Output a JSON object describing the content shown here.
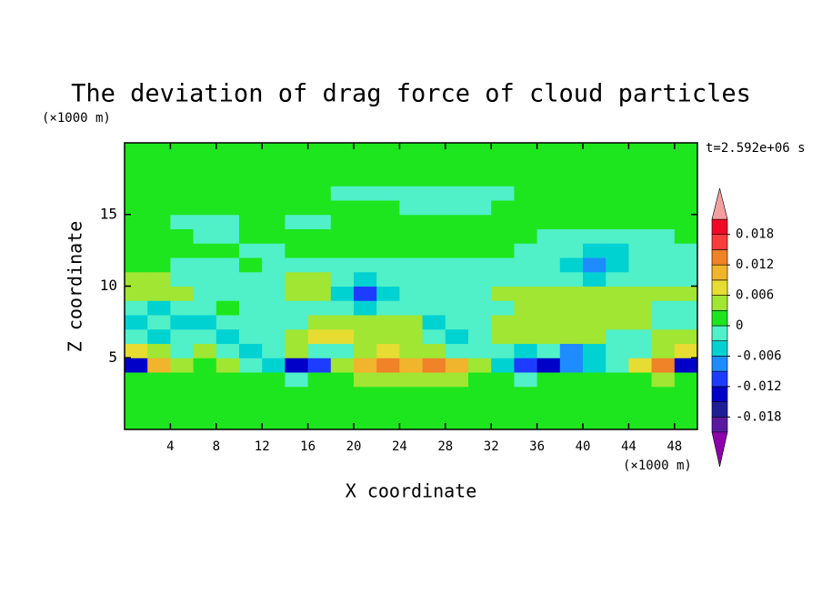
{
  "chart_data": {
    "type": "contour",
    "title": "The deviation of drag force of cloud particles",
    "x_label": "X coordinate",
    "y_label": "Z coordinate",
    "x_unit": "(×1000 m)",
    "y_unit": "(×1000 m)",
    "time_label": "t=2.592e+06 s",
    "xlim": [
      0,
      50
    ],
    "ylim": [
      0,
      20
    ],
    "xticks": [
      4,
      8,
      12,
      16,
      20,
      24,
      28,
      32,
      36,
      40,
      44,
      48
    ],
    "yticks": [
      5,
      10,
      15
    ],
    "x": [
      1,
      3,
      5,
      7,
      9,
      11,
      13,
      15,
      17,
      19,
      21,
      23,
      25,
      27,
      29,
      31,
      33,
      35,
      37,
      39,
      41,
      43,
      45,
      47,
      49
    ],
    "y": [
      0.5,
      1.5,
      2.5,
      3.5,
      4.5,
      5.5,
      6.5,
      7.5,
      8.5,
      9.5,
      10.5,
      11.5,
      12.5,
      13.5,
      14.5,
      15.5,
      16.5,
      17.5,
      18.5,
      19.5
    ],
    "levels": [
      -0.021,
      -0.018,
      -0.015,
      -0.012,
      -0.009,
      -0.006,
      -0.003,
      0,
      0.003,
      0.006,
      0.009,
      0.012,
      0.015,
      0.018,
      0.021
    ],
    "colors": [
      "#8c00aa",
      "#5a1aa0",
      "#1e1e96",
      "#0000c8",
      "#1e3cff",
      "#1e8cff",
      "#00d2d2",
      "#50f0c8",
      "#1ee61e",
      "#a0e632",
      "#e6dc32",
      "#f0b42d",
      "#f08228",
      "#fa3c3c",
      "#f00a28",
      "#f5a0a0"
    ],
    "colorbar_ticks": [
      -0.018,
      -0.012,
      -0.006,
      0,
      0.006,
      0.012,
      0.018
    ],
    "z": [
      [
        0.001,
        0.001,
        0.001,
        0.001,
        0.001,
        0.001,
        0.001,
        0.001,
        0.001,
        0.001,
        0.001,
        0.001,
        0.001,
        0.001,
        0.001,
        0.001,
        0.001,
        0.001,
        0.001,
        0.001,
        0.001,
        0.001,
        0.001,
        0.001,
        0.001
      ],
      [
        0.001,
        0.001,
        0.001,
        0.001,
        0.001,
        0.001,
        0.001,
        0.001,
        0.001,
        0.001,
        0.001,
        0.001,
        0.001,
        0.001,
        0.001,
        0.001,
        0.001,
        0.001,
        0.001,
        0.001,
        0.001,
        0.001,
        0.001,
        0.001,
        0.001
      ],
      [
        0.001,
        0.001,
        0.001,
        0.001,
        0.001,
        0.001,
        0.001,
        0.001,
        0.001,
        0.001,
        0.001,
        0.001,
        0.001,
        0.001,
        0.001,
        0.001,
        0.001,
        0.001,
        0.001,
        0.001,
        0.001,
        0.001,
        0.001,
        0.001,
        0.001
      ],
      [
        0.001,
        0.001,
        0.001,
        0.001,
        0.001,
        0.001,
        0.001,
        -0.002,
        0.001,
        0.001,
        0.004,
        0.004,
        0.004,
        0.004,
        0.004,
        0.001,
        0.001,
        -0.002,
        0.001,
        0.001,
        0.001,
        0.001,
        0.001,
        0.004,
        0.001
      ],
      [
        -0.014,
        0.01,
        0.004,
        0.001,
        0.004,
        -0.002,
        -0.005,
        -0.014,
        -0.011,
        0.004,
        0.01,
        0.013,
        0.01,
        0.013,
        0.01,
        0.004,
        -0.005,
        -0.011,
        -0.014,
        -0.008,
        -0.005,
        -0.002,
        0.007,
        0.013,
        -0.014
      ],
      [
        0.007,
        0.004,
        -0.002,
        0.004,
        -0.002,
        -0.005,
        -0.002,
        0.004,
        -0.002,
        -0.002,
        0.004,
        0.007,
        0.004,
        0.004,
        -0.002,
        -0.002,
        -0.002,
        -0.005,
        -0.002,
        -0.008,
        -0.005,
        -0.002,
        -0.002,
        0.004,
        0.007
      ],
      [
        -0.002,
        -0.005,
        -0.002,
        -0.002,
        -0.005,
        -0.002,
        -0.002,
        0.004,
        0.007,
        0.007,
        0.004,
        0.004,
        0.004,
        -0.002,
        -0.005,
        -0.002,
        0.004,
        0.004,
        0.004,
        0.004,
        0.004,
        -0.002,
        -0.002,
        0.004,
        0.004
      ],
      [
        -0.005,
        -0.002,
        -0.005,
        -0.005,
        -0.002,
        -0.002,
        -0.002,
        -0.002,
        0.004,
        0.004,
        0.004,
        0.004,
        0.004,
        -0.005,
        -0.002,
        -0.002,
        0.004,
        0.004,
        0.004,
        0.004,
        0.004,
        0.004,
        0.004,
        -0.002,
        -0.002
      ],
      [
        -0.002,
        -0.005,
        -0.002,
        -0.002,
        0.001,
        -0.002,
        -0.002,
        -0.002,
        -0.002,
        -0.002,
        -0.005,
        -0.002,
        -0.002,
        -0.002,
        -0.002,
        -0.002,
        -0.002,
        0.004,
        0.004,
        0.004,
        0.004,
        0.004,
        0.004,
        -0.002,
        -0.002
      ],
      [
        0.004,
        0.004,
        0.004,
        -0.002,
        -0.002,
        -0.002,
        -0.002,
        0.004,
        0.004,
        -0.005,
        -0.011,
        -0.005,
        -0.002,
        -0.002,
        -0.002,
        -0.002,
        0.004,
        0.004,
        0.004,
        0.004,
        0.004,
        0.004,
        0.004,
        0.004,
        0.004
      ],
      [
        0.004,
        0.004,
        -0.002,
        -0.002,
        -0.002,
        -0.002,
        -0.002,
        0.004,
        0.004,
        -0.002,
        -0.005,
        -0.002,
        -0.002,
        -0.002,
        -0.002,
        -0.002,
        -0.002,
        -0.002,
        -0.002,
        -0.002,
        -0.005,
        -0.002,
        -0.002,
        -0.002,
        -0.002
      ],
      [
        0.001,
        0.001,
        -0.002,
        -0.002,
        -0.002,
        0.001,
        -0.002,
        -0.002,
        -0.002,
        -0.002,
        -0.002,
        -0.002,
        -0.002,
        -0.002,
        -0.002,
        -0.002,
        -0.002,
        -0.002,
        -0.002,
        -0.005,
        -0.008,
        -0.005,
        -0.002,
        -0.002,
        -0.002
      ],
      [
        0.001,
        0.001,
        0.001,
        0.001,
        0.001,
        -0.002,
        -0.002,
        0.001,
        0.001,
        0.001,
        0.001,
        0.001,
        0.001,
        0.001,
        0.001,
        0.001,
        0.001,
        -0.002,
        -0.002,
        -0.002,
        -0.005,
        -0.005,
        -0.002,
        -0.002,
        -0.002
      ],
      [
        0.001,
        0.001,
        0.001,
        -0.002,
        -0.002,
        0.001,
        0.001,
        0.001,
        0.001,
        0.001,
        0.001,
        0.001,
        0.001,
        0.001,
        0.001,
        0.001,
        0.001,
        0.001,
        -0.002,
        -0.002,
        -0.002,
        -0.002,
        -0.002,
        -0.002,
        0.001
      ],
      [
        0.001,
        0.001,
        -0.002,
        -0.002,
        -0.002,
        0.001,
        0.001,
        -0.002,
        -0.002,
        0.001,
        0.001,
        0.001,
        0.001,
        0.001,
        0.001,
        0.001,
        0.001,
        0.001,
        0.001,
        0.001,
        0.001,
        0.001,
        0.001,
        0.001,
        0.001
      ],
      [
        0.001,
        0.001,
        0.001,
        0.001,
        0.001,
        0.001,
        0.001,
        0.001,
        0.001,
        0.001,
        0.001,
        0.001,
        -0.002,
        -0.002,
        -0.002,
        -0.002,
        0.001,
        0.001,
        0.001,
        0.001,
        0.001,
        0.001,
        0.001,
        0.001,
        0.001
      ],
      [
        0.001,
        0.001,
        0.001,
        0.001,
        0.001,
        0.001,
        0.001,
        0.001,
        0.001,
        -0.002,
        -0.002,
        -0.002,
        -0.002,
        -0.002,
        -0.002,
        -0.002,
        -0.002,
        0.001,
        0.001,
        0.001,
        0.001,
        0.001,
        0.001,
        0.001,
        0.001
      ],
      [
        0.001,
        0.001,
        0.001,
        0.001,
        0.001,
        0.001,
        0.001,
        0.001,
        0.001,
        0.001,
        0.001,
        0.001,
        0.001,
        0.001,
        0.001,
        0.001,
        0.001,
        0.001,
        0.001,
        0.001,
        0.001,
        0.001,
        0.001,
        0.001,
        0.001
      ],
      [
        0.001,
        0.001,
        0.001,
        0.001,
        0.001,
        0.001,
        0.001,
        0.001,
        0.001,
        0.001,
        0.001,
        0.001,
        0.001,
        0.001,
        0.001,
        0.001,
        0.001,
        0.001,
        0.001,
        0.001,
        0.001,
        0.001,
        0.001,
        0.001,
        0.001
      ],
      [
        0.001,
        0.001,
        0.001,
        0.001,
        0.001,
        0.001,
        0.001,
        0.001,
        0.001,
        0.001,
        0.001,
        0.001,
        0.001,
        0.001,
        0.001,
        0.001,
        0.001,
        0.001,
        0.001,
        0.001,
        0.001,
        0.001,
        0.001,
        0.001,
        0.001
      ]
    ]
  }
}
